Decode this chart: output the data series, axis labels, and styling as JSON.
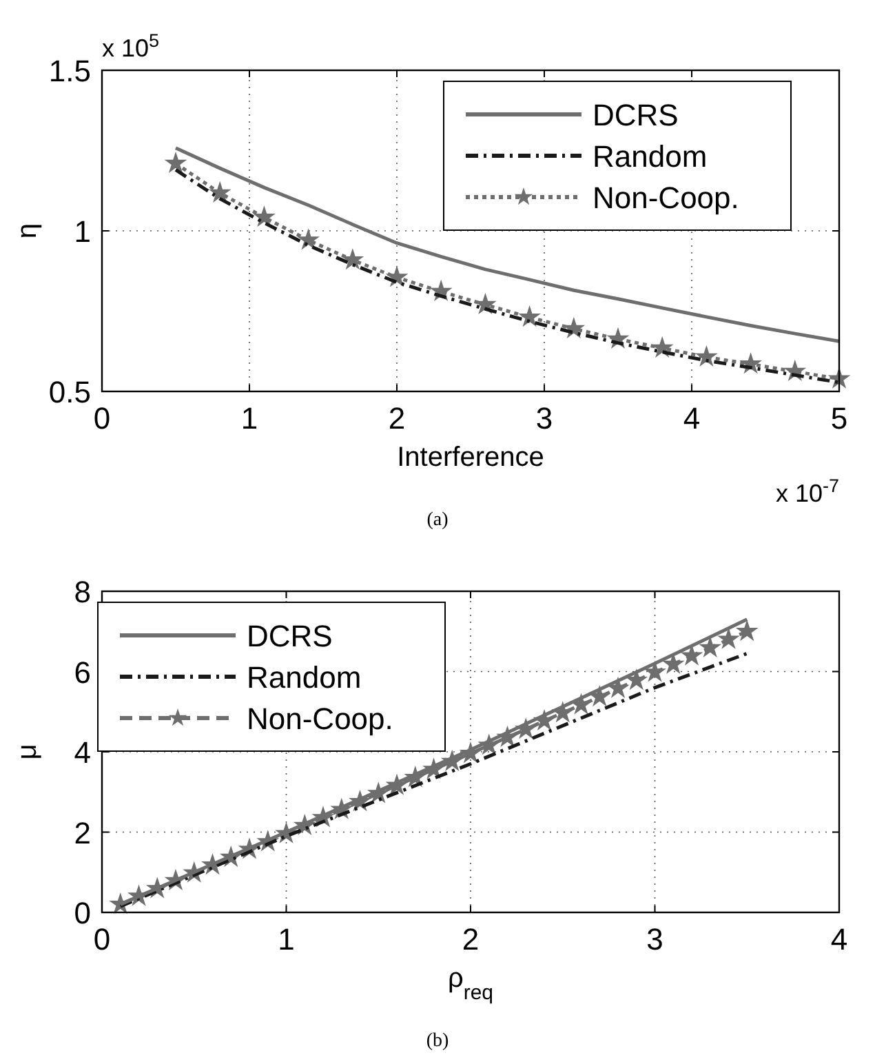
{
  "chart_data": [
    {
      "type": "line",
      "xlabel": "Interference",
      "ylabel": "η",
      "xlim": [
        0,
        5
      ],
      "ylim": [
        0.5,
        1.5
      ],
      "xticks": [
        0,
        1,
        2,
        3,
        4,
        5
      ],
      "yticks": [
        0.5,
        1,
        1.5
      ],
      "grid": true,
      "legend": "top right",
      "annotations": [
        "x 10$^{5}$",
        "x 10$^{-7}$",
        "(a)"
      ],
      "series": [
        {
          "name": "DCRS",
          "color": "#6e6e6e",
          "line_style": "solid",
          "marker": "none",
          "x": [
            0.5,
            0.8,
            1.1,
            1.4,
            1.7,
            2.0,
            2.3,
            2.6,
            2.9,
            3.2,
            3.5,
            3.8,
            4.1,
            4.4,
            4.7,
            5.0
          ],
          "values": [
            1.258,
            1.195,
            1.135,
            1.08,
            1.02,
            0.962,
            0.92,
            0.88,
            0.848,
            0.815,
            0.788,
            0.76,
            0.732,
            0.705,
            0.68,
            0.656
          ]
        },
        {
          "name": "Random",
          "color": "#1a1a1a",
          "line_style": "dashdot",
          "marker": "none",
          "x": [
            0.5,
            0.8,
            1.1,
            1.4,
            1.7,
            2.0,
            2.3,
            2.6,
            2.9,
            3.2,
            3.5,
            3.8,
            4.1,
            4.4,
            4.7,
            5.0
          ],
          "values": [
            1.19,
            1.1,
            1.025,
            0.955,
            0.895,
            0.84,
            0.797,
            0.757,
            0.718,
            0.683,
            0.651,
            0.623,
            0.596,
            0.574,
            0.551,
            0.528
          ]
        },
        {
          "name": "Non-Coop.",
          "color": "#6e6e6e",
          "line_style": "dotted",
          "marker": "star",
          "x": [
            0.5,
            0.8,
            1.1,
            1.4,
            1.7,
            2.0,
            2.3,
            2.6,
            2.9,
            3.2,
            3.5,
            3.8,
            4.1,
            4.4,
            4.7,
            5.0
          ],
          "values": [
            1.21,
            1.118,
            1.042,
            0.971,
            0.909,
            0.855,
            0.811,
            0.77,
            0.731,
            0.695,
            0.663,
            0.635,
            0.607,
            0.585,
            0.562,
            0.539
          ]
        }
      ]
    },
    {
      "type": "line",
      "xlabel": "ρ$_{req}$",
      "ylabel": "μ",
      "xlim": [
        0,
        4
      ],
      "ylim": [
        0,
        8
      ],
      "xticks": [
        0,
        1,
        2,
        3,
        4
      ],
      "yticks": [
        0,
        2,
        4,
        6,
        8
      ],
      "grid": true,
      "legend": "top left",
      "annotations": [
        "(b)"
      ],
      "series": [
        {
          "name": "DCRS",
          "color": "#6e6e6e",
          "line_style": "solid",
          "marker": "none",
          "x": [
            0.1,
            1,
            2,
            3,
            3.5
          ],
          "values": [
            0.2,
            2.0,
            4.05,
            6.2,
            7.3
          ]
        },
        {
          "name": "Random",
          "color": "#1a1a1a",
          "line_style": "dashdot",
          "marker": "none",
          "x": [
            0.1,
            1,
            2,
            3,
            3.5
          ],
          "values": [
            0.15,
            1.9,
            3.7,
            5.6,
            6.45
          ]
        },
        {
          "name": "Non-Coop.",
          "color": "#6e6e6e",
          "line_style": "dashed",
          "marker": "star",
          "x": [
            0.1,
            0.2,
            0.3,
            0.4,
            0.5,
            0.6,
            0.7,
            0.8,
            0.9,
            1.0,
            1.1,
            1.2,
            1.3,
            1.4,
            1.5,
            1.6,
            1.7,
            1.8,
            1.9,
            2.0,
            2.1,
            2.2,
            2.3,
            2.4,
            2.5,
            2.6,
            2.7,
            2.8,
            2.9,
            3.0,
            3.1,
            3.2,
            3.3,
            3.4,
            3.5
          ],
          "values": [
            0.2,
            0.4,
            0.59,
            0.79,
            0.98,
            1.18,
            1.37,
            1.57,
            1.76,
            1.96,
            2.16,
            2.36,
            2.56,
            2.76,
            2.96,
            3.16,
            3.36,
            3.56,
            3.76,
            3.96,
            4.16,
            4.36,
            4.56,
            4.77,
            4.97,
            5.17,
            5.37,
            5.58,
            5.78,
            5.98,
            6.18,
            6.39,
            6.59,
            6.8,
            7.0
          ]
        }
      ]
    }
  ]
}
